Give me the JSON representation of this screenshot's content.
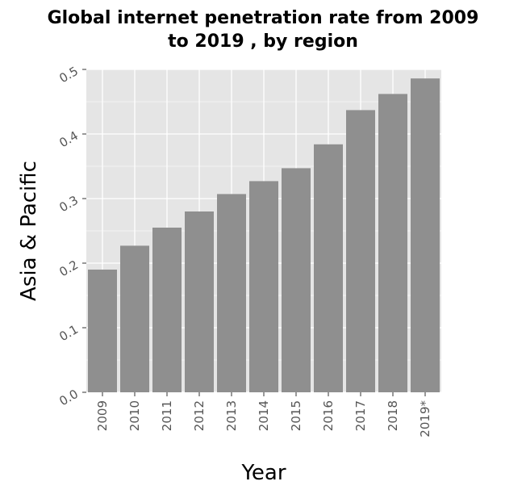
{
  "chart_data": {
    "type": "bar",
    "title_lines": [
      "Global internet penetration rate from 2009",
      "to 2019 , by region"
    ],
    "xlabel": "Year",
    "ylabel": "Asia & Pacific",
    "categories": [
      "2009",
      "2010",
      "2011",
      "2012",
      "2013",
      "2014",
      "2015",
      "2016",
      "2017",
      "2018",
      "2019*"
    ],
    "values": [
      0.19,
      0.227,
      0.255,
      0.28,
      0.307,
      0.327,
      0.347,
      0.384,
      0.437,
      0.462,
      0.486
    ],
    "ylim": [
      0,
      0.5
    ],
    "yticks": [
      0.0,
      0.1,
      0.2,
      0.3,
      0.4,
      0.5
    ],
    "ytick_labels": [
      "0.0",
      "0.1",
      "0.2",
      "0.3",
      "0.4",
      "0.5"
    ],
    "grid": true,
    "legend": "none",
    "colors": {
      "bar": "#8f8f8f",
      "panel": "#e5e5e5",
      "grid": "#ffffff",
      "tick_text": "#555555"
    }
  }
}
